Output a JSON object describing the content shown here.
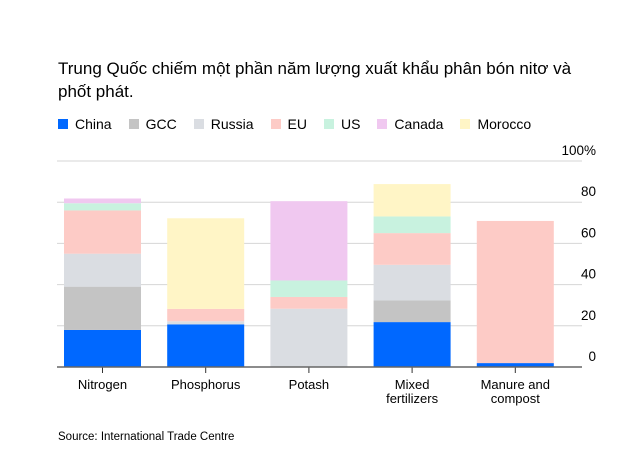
{
  "chart_data": {
    "type": "bar",
    "stacked": true,
    "title": "Trung Quốc chiếm một phần năm lượng xuất khẩu phân bón nitơ và phốt phát.",
    "source": "Source: International Trade Centre",
    "categories": [
      "Nitrogen",
      "Phosphorus",
      "Potash",
      "Mixed fertilizers",
      "Manure and compost"
    ],
    "category_lines": [
      [
        "Nitrogen"
      ],
      [
        "Phosphorus"
      ],
      [
        "Potash"
      ],
      [
        "Mixed",
        "fertilizers"
      ],
      [
        "Manure and",
        "compost"
      ]
    ],
    "series": [
      {
        "name": "China",
        "color": "#0068ff",
        "values": [
          18,
          20.7,
          0,
          21.8,
          1.9
        ]
      },
      {
        "name": "GCC",
        "color": "#c4c4c4",
        "values": [
          21,
          0,
          0,
          10.5,
          0
        ]
      },
      {
        "name": "Russia",
        "color": "#dadde2",
        "values": [
          16,
          1.5,
          28.3,
          17.3,
          0
        ]
      },
      {
        "name": "EU",
        "color": "#fdcbc6",
        "values": [
          21,
          6,
          5.7,
          15.4,
          69
        ]
      },
      {
        "name": "US",
        "color": "#c8f2df",
        "values": [
          3.5,
          0,
          8,
          8.1,
          0
        ]
      },
      {
        "name": "Canada",
        "color": "#f0c8f0",
        "values": [
          2.3,
          0,
          38.5,
          0,
          0
        ]
      },
      {
        "name": "Morocco",
        "color": "#fff5c6",
        "values": [
          0,
          44,
          0,
          15.7,
          0
        ]
      }
    ],
    "ylim": [
      0,
      100
    ],
    "yticks": [
      0,
      20,
      40,
      60,
      80,
      100
    ],
    "ytick_labels": [
      "0",
      "20",
      "40",
      "60",
      "80",
      "100%"
    ],
    "y_axis_position": "right",
    "grid": true,
    "legend": "top"
  }
}
